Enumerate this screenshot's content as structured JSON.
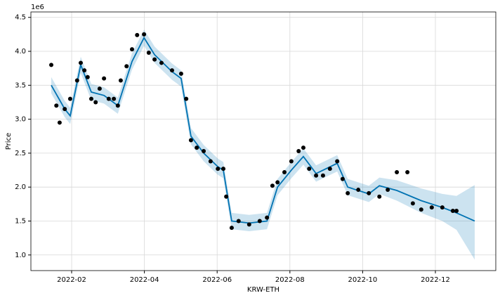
{
  "chart_data": {
    "type": "forecast",
    "x_label": "KRW-ETH",
    "y_label": "Price",
    "y_offset_label": "1e6",
    "grid": true,
    "xlim": [
      0.88,
      13.66
    ],
    "ylim": [
      0.77,
      4.58
    ],
    "xticks": [
      {
        "value": 2,
        "label": "2022-02"
      },
      {
        "value": 4,
        "label": "2022-04"
      },
      {
        "value": 6,
        "label": "2022-06"
      },
      {
        "value": 8,
        "label": "2022-08"
      },
      {
        "value": 10,
        "label": "2022-10"
      },
      {
        "value": 12,
        "label": "2022-12"
      }
    ],
    "yticks": [
      {
        "value": 1,
        "label": "1.0"
      },
      {
        "value": 1.5,
        "label": "1.5"
      },
      {
        "value": 2,
        "label": "2.0"
      },
      {
        "value": 2.5,
        "label": "2.5"
      },
      {
        "value": 3,
        "label": "3.0"
      },
      {
        "value": 3.5,
        "label": "3.5"
      },
      {
        "value": 4,
        "label": "4.0"
      },
      {
        "value": 4.5,
        "label": "4.5"
      }
    ],
    "series": [
      {
        "kind": "points",
        "color": "#000000",
        "x": [
          1.44,
          1.58,
          1.67,
          1.81,
          1.96,
          2.15,
          2.25,
          2.35,
          2.44,
          2.54,
          2.66,
          2.77,
          2.89,
          3.02,
          3.16,
          3.27,
          3.35,
          3.51,
          3.66,
          3.8,
          3.99,
          4.12,
          4.28,
          4.47,
          4.76,
          5.01,
          5.15,
          5.28,
          5.44,
          5.63,
          5.82,
          6.02,
          6.17,
          6.25,
          6.4,
          6.59,
          6.88,
          7.17,
          7.37,
          7.52,
          7.66,
          7.85,
          8.04,
          8.24,
          8.37,
          8.53,
          8.72,
          8.91,
          9.1,
          9.3,
          9.45,
          9.59,
          9.88,
          10.17,
          10.46,
          10.69,
          10.94,
          11.23,
          11.38,
          11.61,
          11.9,
          12.19,
          12.48,
          12.58
        ],
        "values": [
          3.8,
          3.2,
          2.95,
          3.15,
          3.3,
          3.57,
          3.83,
          3.72,
          3.62,
          3.3,
          3.25,
          3.45,
          3.6,
          3.3,
          3.3,
          3.2,
          3.57,
          3.78,
          4.03,
          4.24,
          4.25,
          3.98,
          3.88,
          3.83,
          3.72,
          3.67,
          3.3,
          2.69,
          2.58,
          2.53,
          2.38,
          2.27,
          2.27,
          1.86,
          1.4,
          1.5,
          1.45,
          1.5,
          1.55,
          2.02,
          2.07,
          2.22,
          2.38,
          2.53,
          2.58,
          2.27,
          2.17,
          2.17,
          2.27,
          2.38,
          2.12,
          1.91,
          1.96,
          1.91,
          1.86,
          1.96,
          2.22,
          2.22,
          1.76,
          1.67,
          1.7,
          1.7,
          1.65,
          1.65
        ]
      },
      {
        "kind": "line",
        "color": "#0072B2",
        "x": [
          1.44,
          1.81,
          1.96,
          2.25,
          2.54,
          2.89,
          3.27,
          3.66,
          3.99,
          4.28,
          4.76,
          5.01,
          5.28,
          5.63,
          6.02,
          6.17,
          6.4,
          6.88,
          7.37,
          7.66,
          8.04,
          8.37,
          8.72,
          9.3,
          9.59,
          10.17,
          10.46,
          10.94,
          11.61,
          12.19,
          12.58,
          13.08
        ],
        "values": [
          3.5,
          3.15,
          3.05,
          3.8,
          3.4,
          3.35,
          3.2,
          3.85,
          4.2,
          3.95,
          3.7,
          3.6,
          2.75,
          2.5,
          2.3,
          2.25,
          1.5,
          1.47,
          1.5,
          2.0,
          2.25,
          2.45,
          2.2,
          2.35,
          2.0,
          1.9,
          2.02,
          1.95,
          1.8,
          1.7,
          1.62,
          1.5
        ],
        "upper": [
          3.62,
          3.27,
          3.17,
          3.92,
          3.52,
          3.47,
          3.32,
          3.97,
          4.32,
          4.07,
          3.82,
          3.72,
          2.87,
          2.62,
          2.42,
          2.37,
          1.62,
          1.59,
          1.62,
          2.12,
          2.37,
          2.57,
          2.32,
          2.47,
          2.12,
          2.02,
          2.14,
          2.1,
          1.98,
          1.9,
          1.87,
          2.03
        ],
        "lower": [
          3.38,
          3.03,
          2.93,
          3.68,
          3.28,
          3.23,
          3.08,
          3.73,
          4.08,
          3.83,
          3.58,
          3.48,
          2.63,
          2.38,
          2.18,
          2.13,
          1.38,
          1.35,
          1.38,
          1.88,
          2.13,
          2.33,
          2.08,
          2.23,
          1.88,
          1.78,
          1.9,
          1.8,
          1.62,
          1.5,
          1.37,
          0.93
        ]
      }
    ]
  }
}
